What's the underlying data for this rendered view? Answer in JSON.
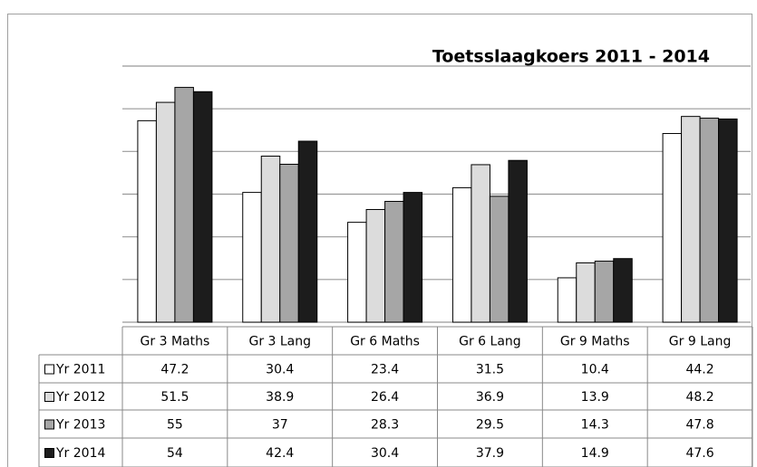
{
  "chart_data": {
    "type": "bar",
    "title": "Toetsslaagkoers 2011 - 2014",
    "categories": [
      "Gr 3 Maths",
      "Gr 3 Lang",
      "Gr 6 Maths",
      "Gr 6 Lang",
      "Gr 9 Maths",
      "Gr 9 Lang"
    ],
    "series": [
      {
        "name": "Yr 2011",
        "color": "#ffffff",
        "values": [
          47.2,
          30.4,
          23.4,
          31.5,
          10.4,
          44.2
        ]
      },
      {
        "name": "Yr 2012",
        "color": "#dcdcdc",
        "values": [
          51.5,
          38.9,
          26.4,
          36.9,
          13.9,
          48.2
        ]
      },
      {
        "name": "Yr 2013",
        "color": "#a6a6a6",
        "values": [
          55,
          37,
          28.3,
          29.5,
          14.3,
          47.8
        ]
      },
      {
        "name": "Yr 2014",
        "color": "#1c1c1c",
        "values": [
          54,
          42.4,
          30.4,
          37.9,
          14.9,
          47.6
        ]
      }
    ],
    "ylim": [
      0,
      60
    ],
    "yticks": [
      0,
      10,
      20,
      30,
      40,
      50,
      60
    ],
    "grid": true
  }
}
